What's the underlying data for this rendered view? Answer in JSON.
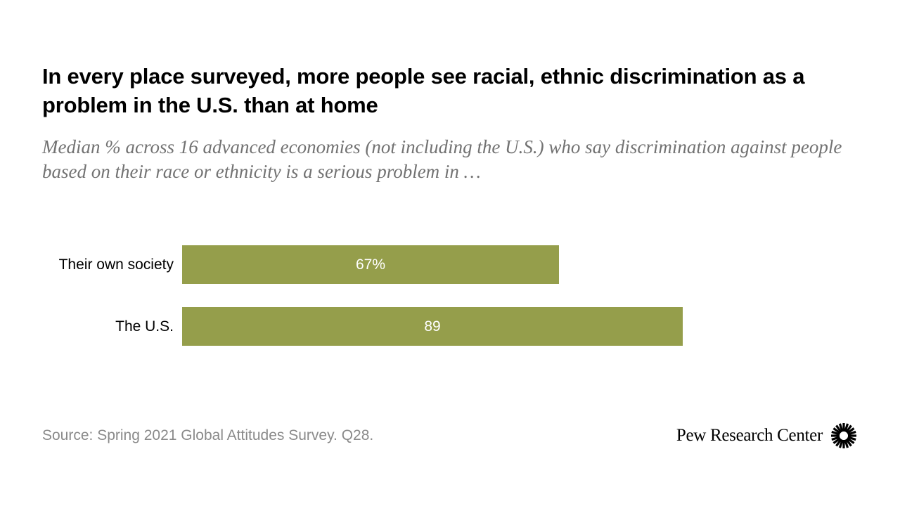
{
  "title": "In every place surveyed, more people see racial, ethnic discrimination as a problem in the U.S. than at home",
  "subtitle": "Median % across 16 advanced economies (not including the U.S.) who say discrimination against people based on their race or ethnicity is a serious problem in …",
  "source": "Source: Spring 2021 Global Attitudes Survey. Q28.",
  "brand": {
    "name": "Pew Research Center",
    "logo_icon": "pew-sunburst-icon"
  },
  "colors": {
    "bar": "#959e4b",
    "bar_label": "#ffffff",
    "category_label": "#000000"
  },
  "chart_data": {
    "type": "bar",
    "orientation": "horizontal",
    "title": "In every place surveyed, more people see racial, ethnic discrimination as a problem in the U.S. than at home",
    "xlabel": "",
    "ylabel": "",
    "xlim": [
      0,
      100
    ],
    "grid": false,
    "categories": [
      "Their own society",
      "The U.S."
    ],
    "values": [
      67,
      89
    ],
    "data_labels": [
      "67%",
      "89"
    ]
  }
}
